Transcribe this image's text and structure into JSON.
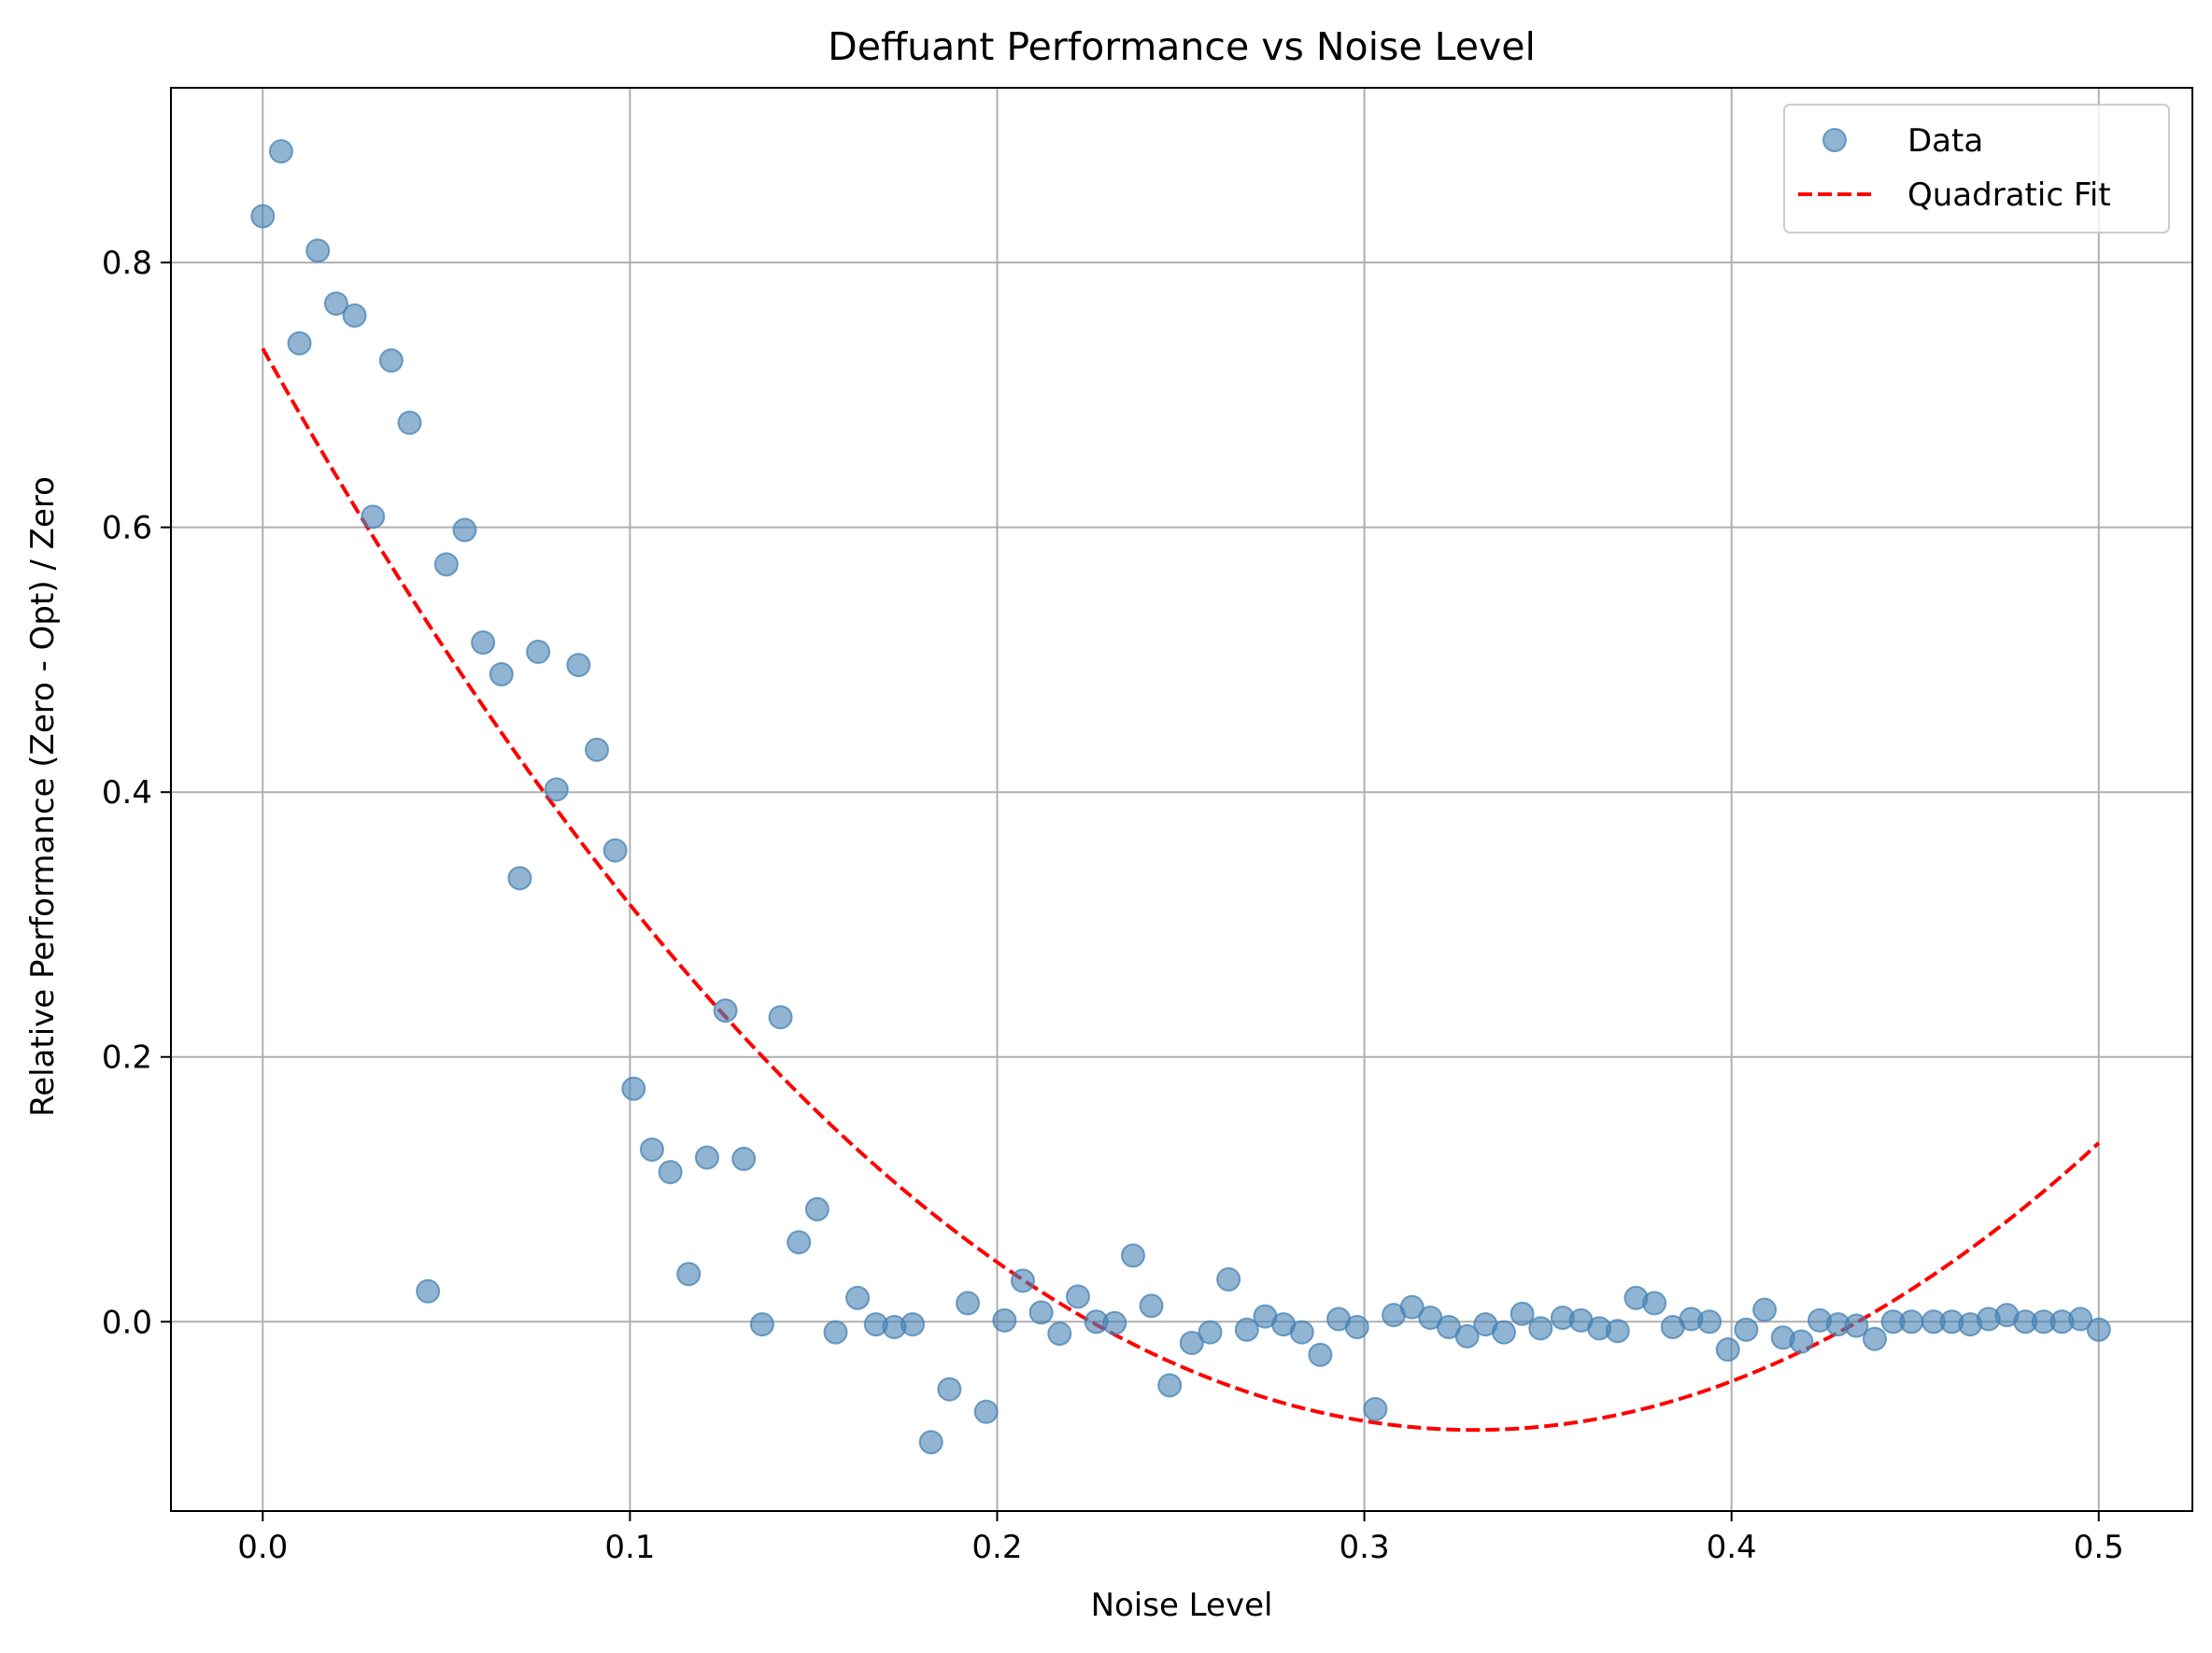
{
  "chart_data": {
    "type": "scatter",
    "title": "Deffuant Performance vs Noise Level",
    "xlabel": "Noise Level",
    "ylabel": "Relative Performance (Zero - Opt) / Zero",
    "xlim": [
      -0.025,
      0.5255
    ],
    "ylim": [
      -0.143,
      0.932
    ],
    "xticks": [
      0.0,
      0.1,
      0.2,
      0.3,
      0.4,
      0.5
    ],
    "xtick_labels": [
      "0.0",
      "0.1",
      "0.2",
      "0.3",
      "0.4",
      "0.5"
    ],
    "yticks": [
      0.0,
      0.2,
      0.4,
      0.6,
      0.8
    ],
    "ytick_labels": [
      "0.0",
      "0.2",
      "0.4",
      "0.6",
      "0.8"
    ],
    "grid": true,
    "legend_position": "top-right",
    "series": [
      {
        "name": "Data",
        "kind": "scatter",
        "color": "#4682b4",
        "points": [
          [
            0.0,
            0.835
          ],
          [
            0.005,
            0.884
          ],
          [
            0.01,
            0.739
          ],
          [
            0.015,
            0.809
          ],
          [
            0.02,
            0.769
          ],
          [
            0.025,
            0.76
          ],
          [
            0.03,
            0.608
          ],
          [
            0.035,
            0.726
          ],
          [
            0.04,
            0.679
          ],
          [
            0.045,
            0.023
          ],
          [
            0.05,
            0.572
          ],
          [
            0.055,
            0.598
          ],
          [
            0.06,
            0.513
          ],
          [
            0.065,
            0.489
          ],
          [
            0.07,
            0.335
          ],
          [
            0.075,
            0.506
          ],
          [
            0.08,
            0.402
          ],
          [
            0.086,
            0.496
          ],
          [
            0.091,
            0.432
          ],
          [
            0.096,
            0.356
          ],
          [
            0.101,
            0.176
          ],
          [
            0.106,
            0.13
          ],
          [
            0.111,
            0.113
          ],
          [
            0.116,
            0.036
          ],
          [
            0.121,
            0.124
          ],
          [
            0.126,
            0.235
          ],
          [
            0.131,
            0.123
          ],
          [
            0.136,
            -0.002
          ],
          [
            0.141,
            0.23
          ],
          [
            0.146,
            0.06
          ],
          [
            0.151,
            0.085
          ],
          [
            0.156,
            -0.008
          ],
          [
            0.162,
            0.018
          ],
          [
            0.167,
            -0.002
          ],
          [
            0.172,
            -0.004
          ],
          [
            0.177,
            -0.002
          ],
          [
            0.182,
            -0.091
          ],
          [
            0.187,
            -0.051
          ],
          [
            0.192,
            0.014
          ],
          [
            0.197,
            -0.068
          ],
          [
            0.202,
            0.001
          ],
          [
            0.207,
            0.031
          ],
          [
            0.212,
            0.007
          ],
          [
            0.217,
            -0.009
          ],
          [
            0.222,
            0.019
          ],
          [
            0.227,
            0.0
          ],
          [
            0.232,
            -0.001
          ],
          [
            0.237,
            0.05
          ],
          [
            0.242,
            0.012
          ],
          [
            0.247,
            -0.048
          ],
          [
            0.253,
            -0.016
          ],
          [
            0.258,
            -0.008
          ],
          [
            0.263,
            0.032
          ],
          [
            0.268,
            -0.006
          ],
          [
            0.273,
            0.004
          ],
          [
            0.278,
            -0.002
          ],
          [
            0.283,
            -0.008
          ],
          [
            0.288,
            -0.025
          ],
          [
            0.293,
            0.002
          ],
          [
            0.298,
            -0.004
          ],
          [
            0.303,
            -0.066
          ],
          [
            0.308,
            0.005
          ],
          [
            0.313,
            0.011
          ],
          [
            0.318,
            0.003
          ],
          [
            0.323,
            -0.004
          ],
          [
            0.328,
            -0.011
          ],
          [
            0.333,
            -0.002
          ],
          [
            0.338,
            -0.008
          ],
          [
            0.343,
            0.006
          ],
          [
            0.348,
            -0.005
          ],
          [
            0.354,
            0.003
          ],
          [
            0.359,
            0.001
          ],
          [
            0.364,
            -0.005
          ],
          [
            0.369,
            -0.007
          ],
          [
            0.374,
            0.018
          ],
          [
            0.379,
            0.014
          ],
          [
            0.384,
            -0.004
          ],
          [
            0.389,
            0.002
          ],
          [
            0.394,
            0.0
          ],
          [
            0.399,
            -0.021
          ],
          [
            0.404,
            -0.006
          ],
          [
            0.409,
            0.009
          ],
          [
            0.414,
            -0.012
          ],
          [
            0.419,
            -0.015
          ],
          [
            0.424,
            0.001
          ],
          [
            0.429,
            -0.002
          ],
          [
            0.434,
            -0.003
          ],
          [
            0.439,
            -0.013
          ],
          [
            0.444,
            0.0
          ],
          [
            0.449,
            0.0
          ],
          [
            0.455,
            0.0
          ],
          [
            0.46,
            0.0
          ],
          [
            0.465,
            -0.002
          ],
          [
            0.47,
            0.002
          ],
          [
            0.475,
            0.005
          ],
          [
            0.48,
            0.0
          ],
          [
            0.485,
            0.0
          ],
          [
            0.49,
            0.0
          ],
          [
            0.495,
            0.002
          ],
          [
            0.5,
            -0.006
          ]
        ]
      },
      {
        "name": "Quadratic Fit",
        "kind": "line",
        "style": "dashed",
        "color": "#ff0000",
        "coefficients": {
          "a": 7.5,
          "b": -4.95,
          "c": 0.735
        },
        "x_range": [
          0.0,
          0.5
        ]
      }
    ]
  }
}
